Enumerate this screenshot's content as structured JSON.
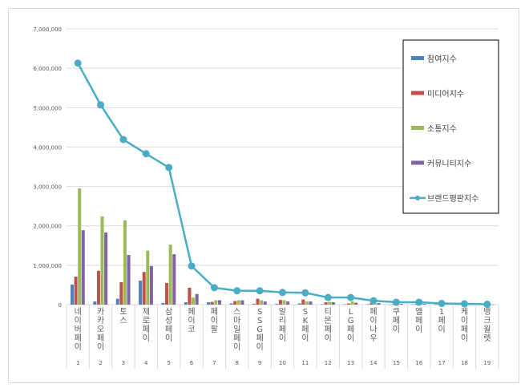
{
  "chart_data": {
    "type": "bar+line",
    "title": "",
    "ylim": [
      0,
      7000000
    ],
    "yticks": [
      "0",
      "1,000,000",
      "2,000,000",
      "3,000,000",
      "4,000,000",
      "5,000,000",
      "6,000,000",
      "7,000,000"
    ],
    "ytick_values": [
      0,
      1000000,
      2000000,
      3000000,
      4000000,
      5000000,
      6000000,
      7000000
    ],
    "categories": [
      "네이버페이",
      "카카오페이",
      "토스",
      "제로페이",
      "삼성페이",
      "페이코",
      "페이팔",
      "스마일페이",
      "SSG페이",
      "알리페이",
      "SK페이",
      "티몬페이",
      "LG페이",
      "페이나우",
      "쿠페이",
      "엘페이",
      "1페이",
      "케이페이",
      "뱅크월렛"
    ],
    "ranks": [
      "1",
      "2",
      "3",
      "4",
      "5",
      "6",
      "7",
      "8",
      "9",
      "10",
      "11",
      "12",
      "13",
      "14",
      "15",
      "16",
      "17",
      "18",
      "19"
    ],
    "legend_position": "right",
    "series": [
      {
        "name": "참여지수",
        "type": "bar",
        "color": "#4f81bd",
        "values": [
          510000,
          80000,
          150000,
          610000,
          40000,
          60000,
          60000,
          30000,
          20000,
          20000,
          30000,
          10000,
          10000,
          10000,
          5000,
          5000,
          5000,
          5000,
          3000
        ]
      },
      {
        "name": "미디어지수",
        "type": "bar",
        "color": "#c0504d",
        "values": [
          710000,
          860000,
          570000,
          830000,
          550000,
          430000,
          70000,
          90000,
          150000,
          120000,
          130000,
          60000,
          30000,
          40000,
          20000,
          20000,
          10000,
          10000,
          5000
        ]
      },
      {
        "name": "소통지수",
        "type": "bar",
        "color": "#9bbb59",
        "values": [
          2950000,
          2240000,
          2140000,
          1370000,
          1520000,
          180000,
          110000,
          110000,
          110000,
          110000,
          80000,
          70000,
          80000,
          30000,
          20000,
          20000,
          10000,
          5000,
          3000
        ]
      },
      {
        "name": "커뮤니티지수",
        "type": "bar",
        "color": "#8064a2",
        "values": [
          1890000,
          1830000,
          1260000,
          980000,
          1280000,
          270000,
          110000,
          110000,
          80000,
          80000,
          80000,
          60000,
          50000,
          40000,
          20000,
          20000,
          10000,
          5000,
          3000
        ]
      },
      {
        "name": "브랜드평판지수",
        "type": "line",
        "color": "#4bacc6",
        "values": [
          6130000,
          5070000,
          4190000,
          3830000,
          3480000,
          980000,
          430000,
          350000,
          350000,
          310000,
          300000,
          180000,
          180000,
          100000,
          60000,
          60000,
          30000,
          20000,
          10000
        ]
      }
    ]
  }
}
